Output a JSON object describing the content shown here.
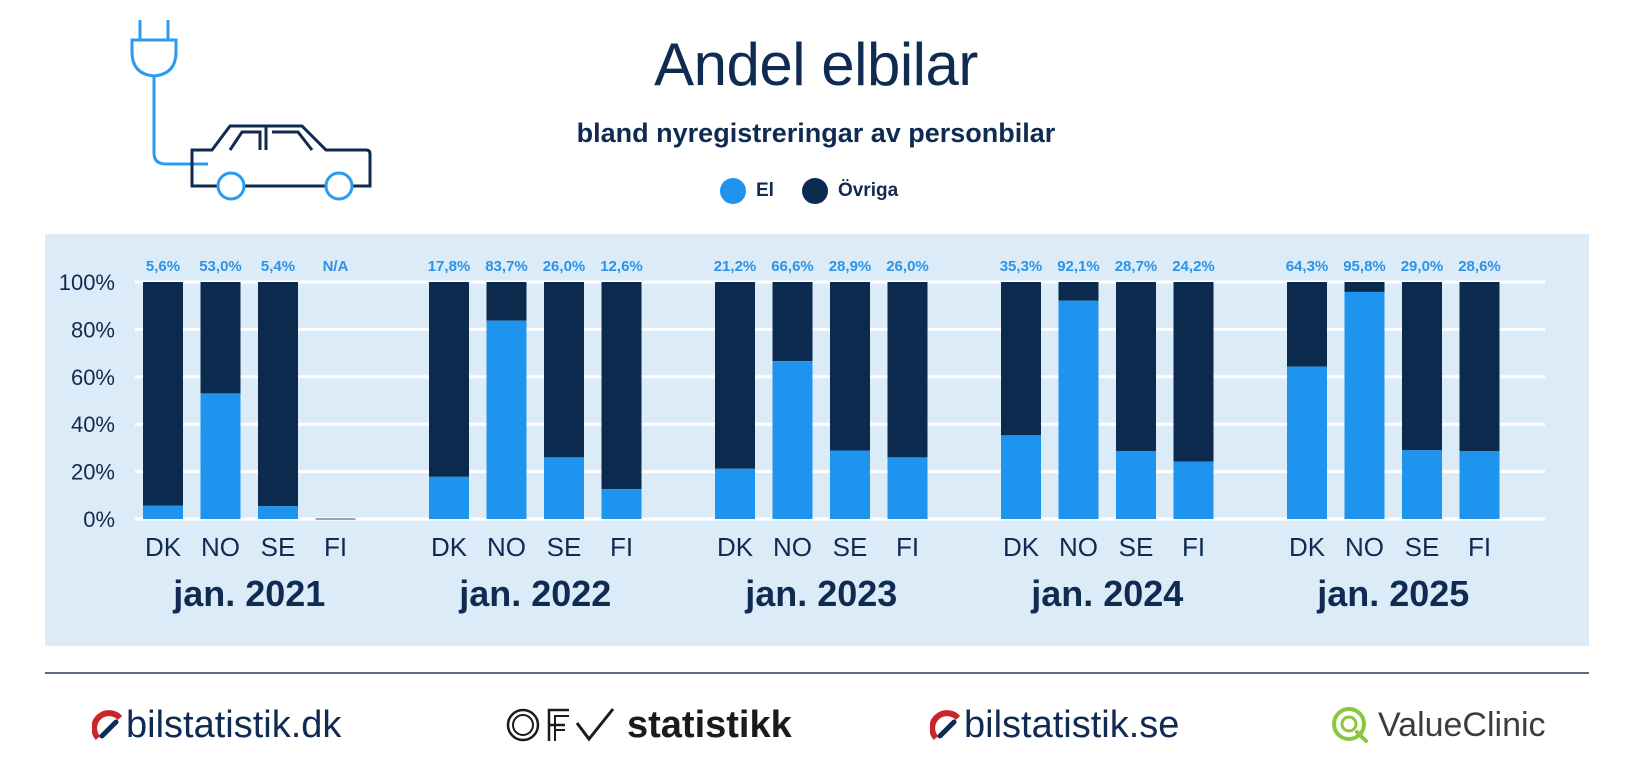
{
  "header": {
    "title": "Andel elbilar",
    "subtitle": "bland nyregistreringar av personbilar"
  },
  "legend": [
    {
      "label": "El",
      "color": "#1e94ef"
    },
    {
      "label": "Övriga",
      "color": "#0b2a4e"
    }
  ],
  "chart_data": {
    "type": "bar",
    "stacked": true,
    "groups": [
      {
        "label": "jan. 2021",
        "categories": [
          "DK",
          "NO",
          "SE",
          "FI"
        ],
        "el": [
          5.6,
          53.0,
          5.4,
          null
        ],
        "value_labels": [
          "5,6%",
          "53,0%",
          "5,4%",
          "N/A"
        ]
      },
      {
        "label": "jan. 2022",
        "categories": [
          "DK",
          "NO",
          "SE",
          "FI"
        ],
        "el": [
          17.8,
          83.7,
          26.0,
          12.6
        ],
        "value_labels": [
          "17,8%",
          "83,7%",
          "26,0%",
          "12,6%"
        ]
      },
      {
        "label": "jan. 2023",
        "categories": [
          "DK",
          "NO",
          "SE",
          "FI"
        ],
        "el": [
          21.2,
          66.6,
          28.9,
          26.0
        ],
        "value_labels": [
          "21,2%",
          "66,6%",
          "28,9%",
          "26,0%"
        ]
      },
      {
        "label": "jan. 2024",
        "categories": [
          "DK",
          "NO",
          "SE",
          "FI"
        ],
        "el": [
          35.3,
          92.1,
          28.7,
          24.2
        ],
        "value_labels": [
          "35,3%",
          "92,1%",
          "28,7%",
          "24,2%"
        ]
      },
      {
        "label": "jan. 2025",
        "categories": [
          "DK",
          "NO",
          "SE",
          "FI"
        ],
        "el": [
          64.3,
          95.8,
          29.0,
          28.6
        ],
        "value_labels": [
          "64,3%",
          "95,8%",
          "29,0%",
          "28,6%"
        ]
      }
    ],
    "series": [
      {
        "name": "El"
      },
      {
        "name": "Övriga"
      }
    ],
    "y_ticks": [
      "0%",
      "20%",
      "40%",
      "60%",
      "80%",
      "100%"
    ],
    "ylim": [
      0,
      100
    ],
    "grid": true,
    "colors": {
      "el": "#1e94ef",
      "ovriga": "#0b2a4e",
      "value_label": "#2c93e6",
      "background": "#dcebf8",
      "grid": "#ffffff"
    }
  },
  "footer": {
    "logos": [
      {
        "name": "bilstatistik-dk",
        "text": "bilstatistik.dk"
      },
      {
        "name": "ofv-statistikk",
        "text": "statistikk",
        "mark": "OFV"
      },
      {
        "name": "bilstatistik-se",
        "text": "bilstatistik.se"
      },
      {
        "name": "valueclinic",
        "text": "ValueClinic"
      }
    ]
  }
}
